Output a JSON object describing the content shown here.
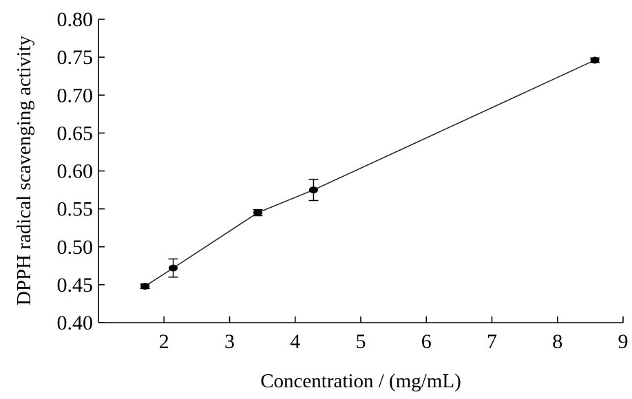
{
  "chart_data": {
    "type": "line",
    "title": "",
    "xlabel": "Concentration / (mg/mL)",
    "ylabel": "DPPH radical scavenging activity",
    "xlim": [
      1,
      9
    ],
    "ylim": [
      0.4,
      0.8
    ],
    "x_ticks": [
      2,
      3,
      4,
      5,
      6,
      7,
      8,
      9
    ],
    "x_tick_labels": [
      "2",
      "3",
      "4",
      "5",
      "6",
      "7",
      "8",
      "9"
    ],
    "y_ticks": [
      0.4,
      0.45,
      0.5,
      0.55,
      0.6,
      0.65,
      0.7,
      0.75,
      0.8
    ],
    "y_tick_labels": [
      "0.40",
      "0.45",
      "0.50",
      "0.55",
      "0.60",
      "0.65",
      "0.70",
      "0.75",
      "0.80"
    ],
    "grid": false,
    "series": [
      {
        "x": [
          1.71,
          2.14,
          3.43,
          4.28,
          8.57
        ],
        "y": [
          0.448,
          0.472,
          0.545,
          0.575,
          0.746
        ],
        "error": [
          0.003,
          0.012,
          0.004,
          0.014,
          0.003
        ]
      }
    ],
    "colors": {
      "line": "#222222",
      "marker": "#000000"
    }
  }
}
